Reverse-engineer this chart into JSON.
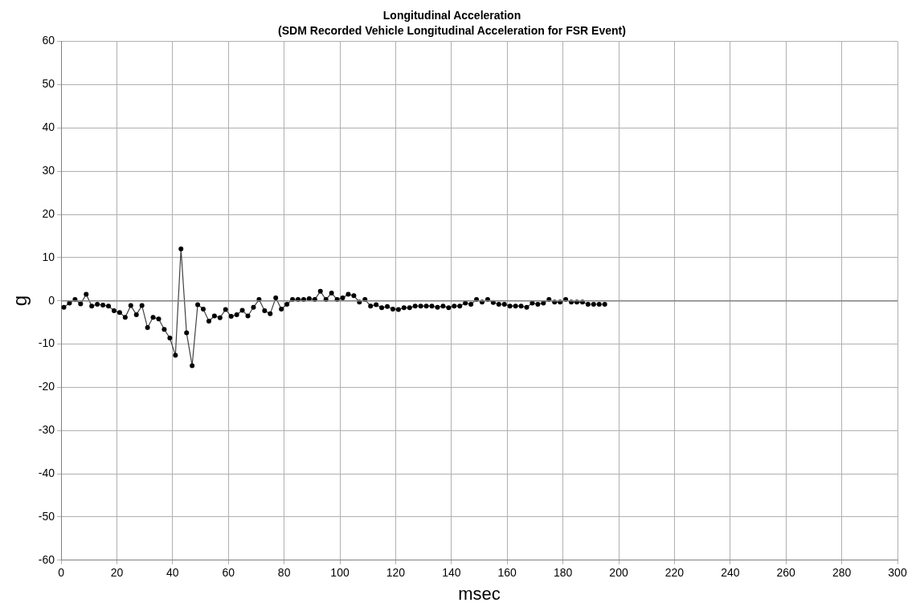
{
  "chart_data": {
    "type": "line",
    "title": "Longitudinal Acceleration",
    "subtitle": "(SDM Recorded Vehicle Longitudinal Acceleration for FSR Event)",
    "xlabel": "msec",
    "ylabel": "g",
    "x": [
      1,
      3,
      5,
      7,
      9,
      11,
      13,
      15,
      17,
      19,
      21,
      23,
      25,
      27,
      29,
      31,
      33,
      35,
      37,
      39,
      41,
      43,
      45,
      47,
      49,
      51,
      53,
      55,
      57,
      59,
      61,
      63,
      65,
      67,
      69,
      71,
      73,
      75,
      77,
      79,
      81,
      83,
      85,
      87,
      89,
      91,
      93,
      95,
      97,
      99,
      101,
      103,
      105,
      107,
      109,
      111,
      113,
      115,
      117,
      119,
      121,
      123,
      125,
      127,
      129,
      131,
      133,
      135,
      137,
      139,
      141,
      143,
      145,
      147,
      149,
      151,
      153,
      155,
      157,
      159,
      161,
      163,
      165,
      167,
      169,
      171,
      173,
      175,
      177,
      179,
      181,
      183,
      185,
      187,
      189,
      191,
      193,
      195
    ],
    "series": [
      {
        "color": "#404040",
        "values": [
          -1.5,
          -0.5,
          0.3,
          -0.7,
          1.5,
          -1.2,
          -0.8,
          -1,
          -1.2,
          -2.3,
          -2.7,
          -3.8,
          -1.1,
          -3.2,
          -1.1,
          -6.2,
          -3.8,
          -4.2,
          -6.6,
          -8.6,
          -12.6,
          12,
          -7.4,
          -15,
          -0.9,
          -1.9,
          -4.7,
          -3.5,
          -3.9,
          -2,
          -3.6,
          -3.2,
          -2.2,
          -3.5,
          -1.5,
          0.3,
          -2.3,
          -3,
          0.7,
          -1.9,
          -0.8,
          0.3,
          0.3,
          0.3,
          0.5,
          0.3,
          2.2,
          0.3,
          1.8,
          0.3,
          0.7,
          1.5,
          1.2,
          -0.3,
          0.3,
          -1.2,
          -0.9,
          -1.6,
          -1.3,
          -1.9,
          -2,
          -1.6,
          -1.6,
          -1.2,
          -1.2,
          -1.2,
          -1.2,
          -1.5,
          -1.2,
          -1.6,
          -1.2,
          -1.2,
          -0.5,
          -0.8,
          0.3,
          -0.3,
          0.3,
          -0.4,
          -0.8,
          -0.8,
          -1.2,
          -1.2,
          -1.2,
          -1.5,
          -0.5,
          -0.8,
          -0.5,
          0.3,
          -0.3,
          -0.3,
          0.3,
          -0.3,
          -0.3,
          -0.3,
          -0.8,
          -0.8,
          -0.8,
          -0.8
        ]
      }
    ],
    "xlim": [
      0,
      300
    ],
    "xticks": [
      0,
      20,
      40,
      60,
      80,
      100,
      120,
      140,
      160,
      180,
      200,
      220,
      240,
      260,
      280,
      300
    ],
    "ylim": [
      -60,
      60
    ],
    "yticks": [
      -60,
      -50,
      -40,
      -30,
      -20,
      -10,
      0,
      10,
      20,
      30,
      40,
      50,
      60
    ],
    "ref_lines": [
      {
        "axis": "y",
        "value": 0,
        "color": "#808080"
      }
    ],
    "grid": true,
    "legend": false,
    "marker": "circle",
    "line_style": "solid"
  }
}
